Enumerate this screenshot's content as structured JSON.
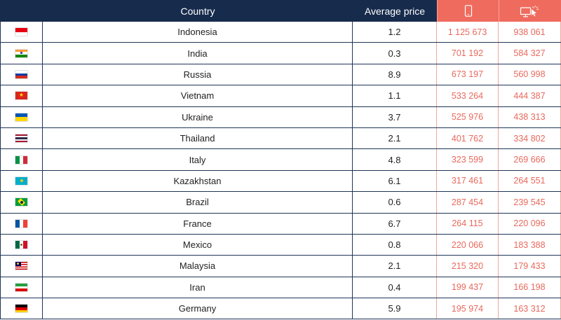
{
  "header": {
    "country_label": "Country",
    "price_label": "Average price",
    "mobile_icon": "smartphone-icon",
    "desktop_icon": "desktop-click-icon"
  },
  "colors": {
    "header_bg": "#172b4d",
    "accent": "#ef6b5e"
  },
  "rows": [
    {
      "country": "Indonesia",
      "flag": "indonesia-flag-icon",
      "price": "1.2",
      "mobile": "1 125 673",
      "desktop": "938 061"
    },
    {
      "country": "India",
      "flag": "india-flag-icon",
      "price": "0.3",
      "mobile": "701 192",
      "desktop": "584 327"
    },
    {
      "country": "Russia",
      "flag": "russia-flag-icon",
      "price": "8.9",
      "mobile": "673 197",
      "desktop": "560 998"
    },
    {
      "country": "Vietnam",
      "flag": "vietnam-flag-icon",
      "price": "1.1",
      "mobile": "533 264",
      "desktop": "444 387"
    },
    {
      "country": "Ukraine",
      "flag": "ukraine-flag-icon",
      "price": "3.7",
      "mobile": "525 976",
      "desktop": "438 313"
    },
    {
      "country": "Thailand",
      "flag": "thailand-flag-icon",
      "price": "2.1",
      "mobile": "401 762",
      "desktop": "334 802"
    },
    {
      "country": "Italy",
      "flag": "italy-flag-icon",
      "price": "4.8",
      "mobile": "323 599",
      "desktop": "269 666"
    },
    {
      "country": "Kazakhstan",
      "flag": "kazakhstan-flag-icon",
      "price": "6.1",
      "mobile": "317 461",
      "desktop": "264 551"
    },
    {
      "country": "Brazil",
      "flag": "brazil-flag-icon",
      "price": "0.6",
      "mobile": "287 454",
      "desktop": "239 545"
    },
    {
      "country": "France",
      "flag": "france-flag-icon",
      "price": "6.7",
      "mobile": "264 115",
      "desktop": "220 096"
    },
    {
      "country": "Mexico",
      "flag": "mexico-flag-icon",
      "price": "0.8",
      "mobile": "220 066",
      "desktop": "183 388"
    },
    {
      "country": "Malaysia",
      "flag": "malaysia-flag-icon",
      "price": "2.1",
      "mobile": "215 320",
      "desktop": "179 433"
    },
    {
      "country": "Iran",
      "flag": "iran-flag-icon",
      "price": "0.4",
      "mobile": "199 437",
      "desktop": "166 198"
    },
    {
      "country": "Germany",
      "flag": "germany-flag-icon",
      "price": "5.9",
      "mobile": "195 974",
      "desktop": "163 312"
    }
  ]
}
